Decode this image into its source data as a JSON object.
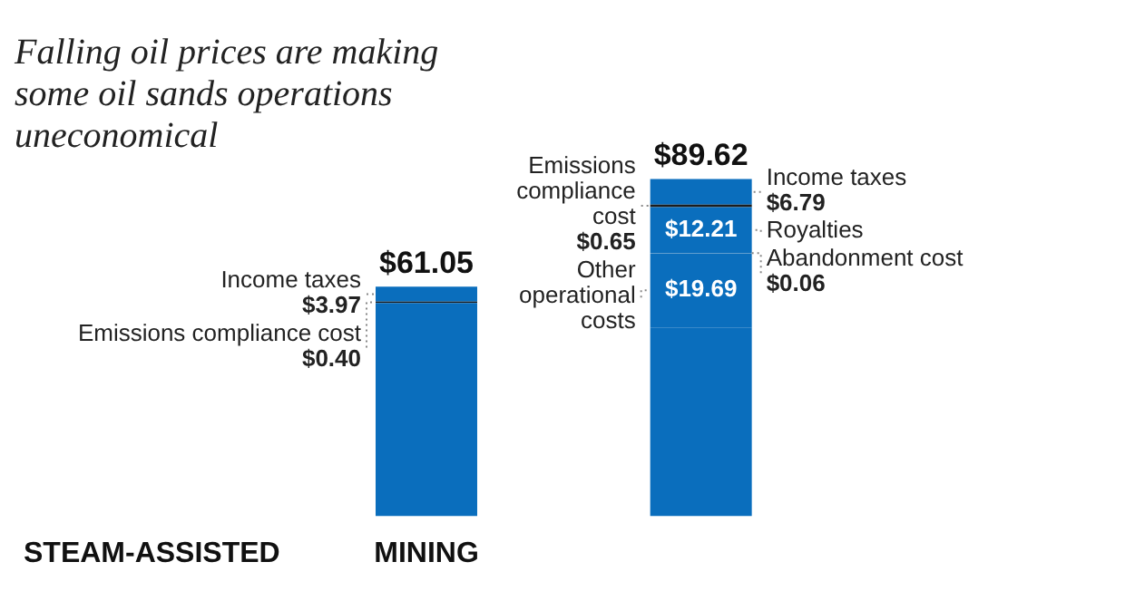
{
  "chart_data": {
    "type": "bar",
    "title": "Falling oil prices are making some oil sands operations uneconomical",
    "categories": [
      "STEAM-ASSISTED",
      "MINING",
      null
    ],
    "stacked": true,
    "tick_labels": "x",
    "series": [
      {
        "color": "#0a6ebd",
        "values": [
          null,
          56.68,
          50.22
        ]
      },
      {
        "name": "Other operational costs",
        "color": "#0a6ebd",
        "values": [
          null,
          null,
          19.69
        ],
        "value_labels": [
          null,
          null,
          "$19.69"
        ]
      },
      {
        "name": "Abandonment cost",
        "color": "#a9b4bd",
        "values": [
          null,
          null,
          0.06
        ],
        "value_labels": [
          null,
          null,
          "$0.06"
        ]
      },
      {
        "name": "Royalties",
        "color": "#0a6ebd",
        "values": [
          null,
          null,
          12.21
        ],
        "value_labels": [
          null,
          null,
          "$12.21"
        ]
      },
      {
        "name": "Emissions compliance cost",
        "color": "#1c1c1c",
        "values": [
          null,
          0.4,
          0.65
        ],
        "value_labels": [
          null,
          "$0.40",
          "$0.65"
        ]
      },
      {
        "name": "Income taxes",
        "color": "#0a6ebd",
        "values": [
          null,
          3.97,
          6.79
        ],
        "value_labels": [
          null,
          "$3.97",
          "$6.79"
        ]
      }
    ],
    "totals": [
      null,
      "$61.05",
      "$89.62"
    ]
  }
}
